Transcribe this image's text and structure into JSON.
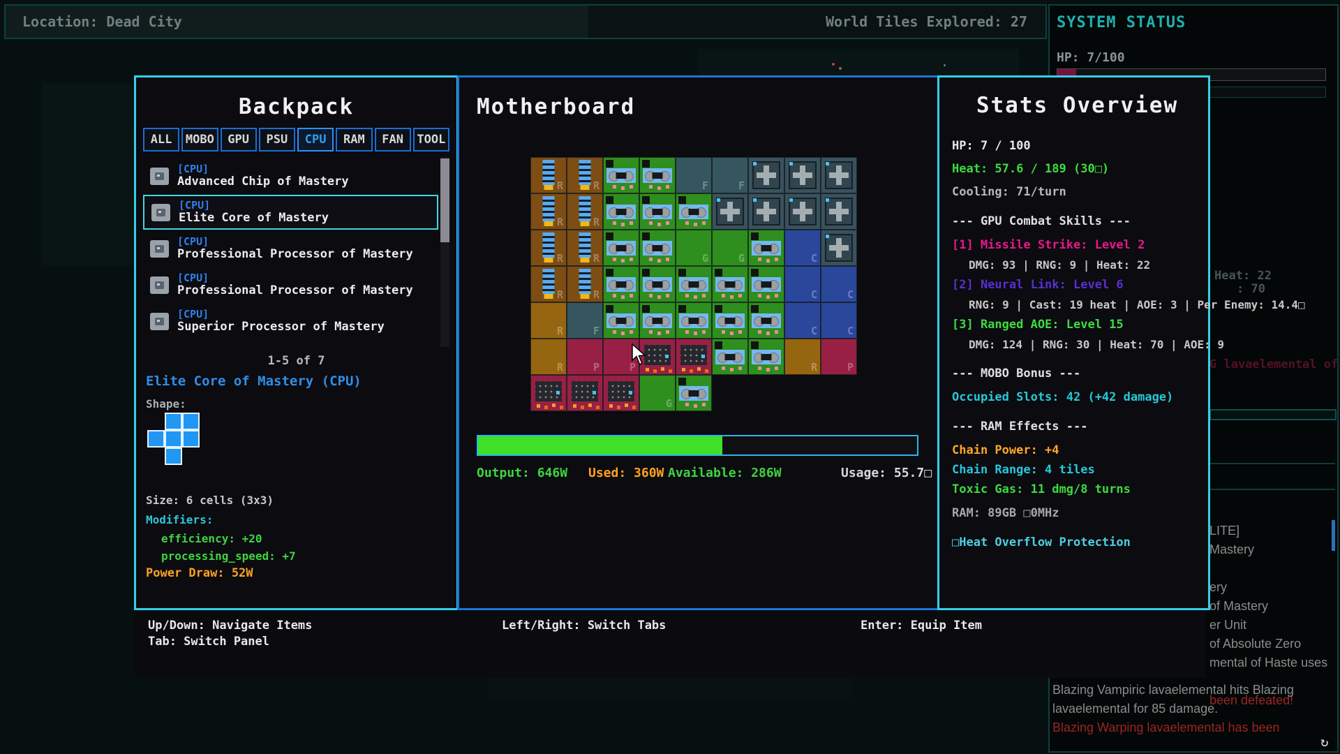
{
  "top_bar": {
    "location": "Location: Dead City",
    "world_tiles": "World Tiles Explored: 27"
  },
  "system_status": {
    "title": "SYSTEM STATUS",
    "hp_label": "HP: 7/100",
    "hp_pct": 7,
    "hp_color": "#7a1040"
  },
  "backpack": {
    "title": "Backpack",
    "tabs": [
      {
        "label": "ALL",
        "active": false
      },
      {
        "label": "MOBO",
        "active": false
      },
      {
        "label": "GPU",
        "active": false
      },
      {
        "label": "PSU",
        "active": false
      },
      {
        "label": "CPU",
        "active": true
      },
      {
        "label": "RAM",
        "active": false
      },
      {
        "label": "FAN",
        "active": false
      },
      {
        "label": "TOOL",
        "active": false
      }
    ],
    "items": [
      {
        "tag": "[CPU]",
        "name": "Advanced Chip of Mastery",
        "selected": false
      },
      {
        "tag": "[CPU]",
        "name": "Elite Core of Mastery",
        "selected": true
      },
      {
        "tag": "[CPU]",
        "name": "Professional Processor of Mastery",
        "selected": false
      },
      {
        "tag": "[CPU]",
        "name": "Professional Processor of Mastery",
        "selected": false
      },
      {
        "tag": "[CPU]",
        "name": "Superior Processor of Mastery",
        "selected": false
      }
    ],
    "pagination": "1-5 of 7",
    "selected_item_title": "Elite Core of Mastery (CPU)",
    "shape_label": "Shape:",
    "shape_cells": [
      [
        0,
        1,
        1
      ],
      [
        1,
        1,
        1
      ],
      [
        0,
        1,
        0
      ]
    ],
    "shape_color": "#2196f3",
    "size_text": "Size: 6 cells (3x3)",
    "modifiers_label": "Modifiers:",
    "modifiers": [
      "efficiency: +20",
      "processing_speed: +7"
    ],
    "power_draw": "Power Draw: 52W"
  },
  "motherboard": {
    "title": "Motherboard",
    "legend": {
      "ram": "R",
      "amber": "R",
      "fan_slot": "F",
      "gpu_slot": "G",
      "cpu_slot": "C",
      "psu_slot": "P"
    },
    "grid": [
      [
        "ram",
        "ram",
        "gpu",
        "gpu",
        "fan_slot",
        "fan_slot",
        "fan",
        "fan",
        "fan"
      ],
      [
        "ram",
        "ram",
        "gpu",
        "gpu",
        "gpu",
        "fan",
        "fan",
        "fan",
        "fan"
      ],
      [
        "ram",
        "ram",
        "gpu",
        "gpu",
        "gpu_slot",
        "gpu_slot",
        "gpu",
        "cpu_slot",
        "fan"
      ],
      [
        "ram",
        "ram",
        "gpu",
        "gpu",
        "gpu",
        "gpu",
        "gpu",
        "cpu_slot",
        "cpu_slot"
      ],
      [
        "amber",
        "fan_slot",
        "gpu",
        "gpu",
        "gpu",
        "gpu",
        "gpu",
        "cpu_slot",
        "cpu_slot"
      ],
      [
        "amber",
        "psu_slot",
        "psu_slot",
        "psu",
        "psu",
        "gpu",
        "gpu"
      ],
      [
        "amber",
        "psu_slot",
        "psu",
        "psu",
        "psu",
        "gpu_slot",
        "gpu"
      ]
    ],
    "power_bar_pct": 55.7,
    "power_bar_color": "#3ee028",
    "stats": {
      "output": "Output: 646W",
      "used": "Used: 360W",
      "available": "Available: 286W",
      "usage": "Usage: 55.7□"
    }
  },
  "stats_overview": {
    "title": "Stats Overview",
    "hp": "HP: 7 / 100",
    "heat": "Heat: 57.6 / 189 (30□)",
    "cooling": "Cooling: 71/turn",
    "gpu_skills_header": "--- GPU Combat Skills ---",
    "skills": [
      {
        "name": "[1] Missile Strike: Level 2",
        "detail": "DMG: 93 | RNG: 9 | Heat: 22",
        "color": "#e8188a"
      },
      {
        "name": "[2] Neural Link: Level 6",
        "detail": "RNG: 9 | Cast: 19 heat | AOE: 3 | Per Enemy: 14.4□",
        "color": "#5a2fd0"
      },
      {
        "name": "[3] Ranged AOE: Level 15",
        "detail": "DMG: 124 | RNG: 30 | Heat: 70 | AOE: 9",
        "color": "#3ddc3d"
      }
    ],
    "mobo_header": "--- MOBO Bonus ---",
    "mobo_bonus": "Occupied Slots: 42 (+42 damage)",
    "mobo_bonus_color": "#28c8d8",
    "ram_header": "--- RAM Effects ---",
    "ram_effects": [
      {
        "text": "Chain Power: +4",
        "color": "#ffa726"
      },
      {
        "text": "Chain Range: 4 tiles",
        "color": "#28c8d8"
      },
      {
        "text": "Toxic Gas: 11 dmg/8 turns",
        "color": "#3ddc3d"
      }
    ],
    "ram_spec": "RAM: 89GB □0MHz",
    "protection": "□Heat Overflow Protection"
  },
  "footer_hints": {
    "updown": "Up/Down: Navigate Items",
    "tab": "Tab: Switch Panel",
    "leftright": "Left/Right: Switch Tabs",
    "enter": "Enter: Equip Item"
  },
  "background_log": {
    "fragment_heat": "Heat: 22",
    "fragment_70": ": 70",
    "fragment_lava": "G lavaelemental of",
    "strip_lines": [
      {
        "text": "LITE]",
        "color": "gray"
      },
      {
        "text": "Mastery",
        "color": "gray"
      },
      {
        "text": "",
        "color": "gray"
      },
      {
        "text": "ery",
        "color": "gray"
      },
      {
        "text": "of Mastery",
        "color": "gray"
      },
      {
        "text": "er Unit",
        "color": "gray"
      },
      {
        "text": "of Absolute Zero",
        "color": "gray"
      },
      {
        "text": "mental of Haste uses",
        "color": "gray"
      },
      {
        "text": "",
        "color": "gray"
      },
      {
        "text": "been defeated!",
        "color": "red"
      }
    ],
    "bottom_lines": [
      {
        "text": "Blazing Vampiric lavaelemental hits Blazing",
        "color": "gray"
      },
      {
        "text": "lavaelemental for 85 damage.",
        "color": "gray"
      },
      {
        "text": "Blazing Warping lavaelemental has been",
        "color": "red"
      }
    ]
  }
}
